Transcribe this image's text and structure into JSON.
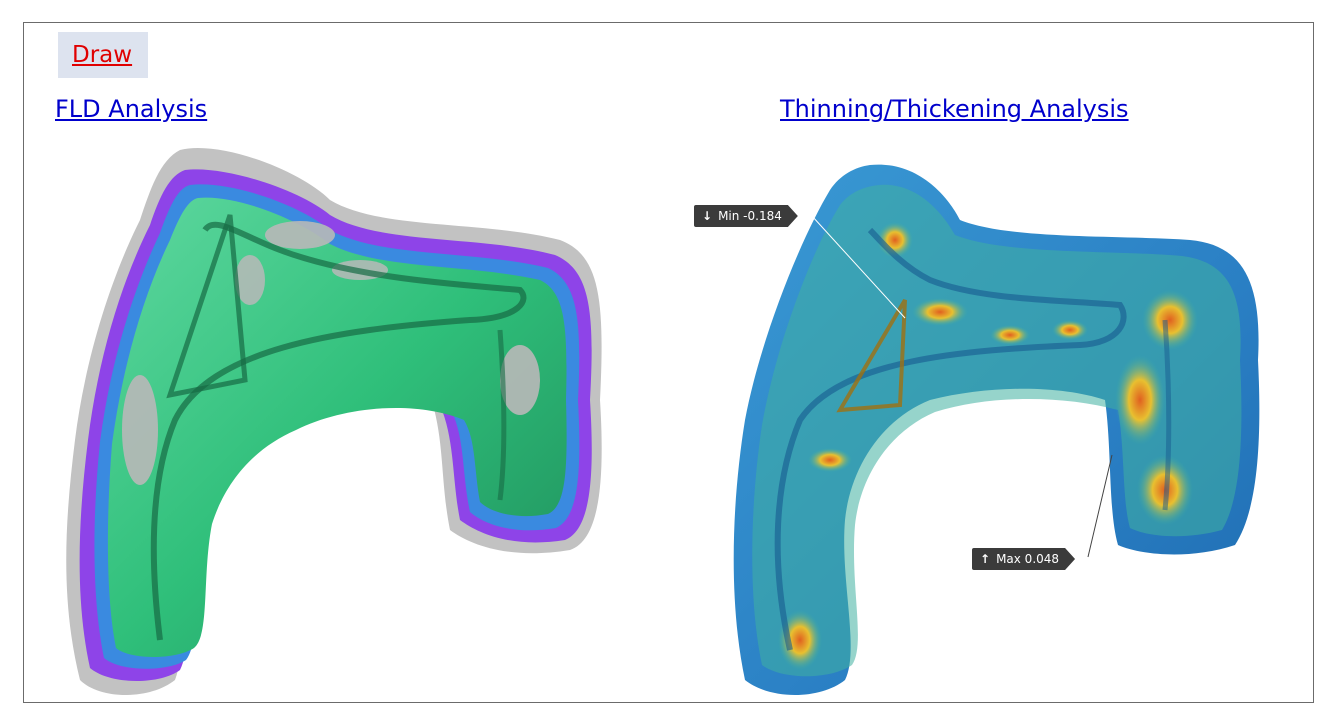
{
  "tabs": {
    "draw": "Draw"
  },
  "sections": {
    "fld": {
      "title": "FLD Analysis"
    },
    "thinning": {
      "title": "Thinning/Thickening Analysis",
      "min_label": "Min -0.184",
      "max_label": "Max 0.048",
      "min_arrow": "↓",
      "max_arrow": "↑"
    }
  },
  "colors": {
    "link": "#0000cc",
    "draw_link": "#e00000",
    "fld_safe": "#2fbf7a",
    "fld_compression": "#9b3ff0",
    "fld_thickening": "#3a8ae0",
    "fld_insufficient": "#b8b8b8",
    "thin_base": "#2a7fc4",
    "thin_mid": "#3fb0a0",
    "thin_high": "#e8c030",
    "thin_peak": "#e06020"
  }
}
